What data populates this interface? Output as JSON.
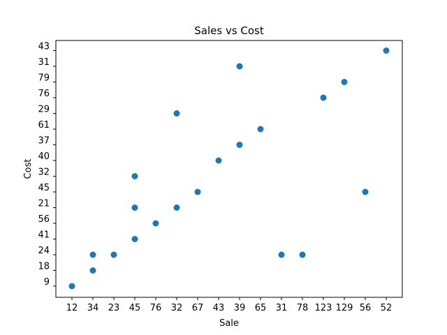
{
  "chart_data": {
    "type": "scatter",
    "title": "Sales vs Cost",
    "xlabel": "Sale",
    "ylabel": "Cost",
    "x_categories": [
      "12",
      "34",
      "23",
      "45",
      "76",
      "32",
      "67",
      "43",
      "39",
      "65",
      "31",
      "78",
      "123",
      "129",
      "56",
      "52"
    ],
    "y_categories": [
      "9",
      "18",
      "24",
      "41",
      "56",
      "21",
      "45",
      "32",
      "40",
      "37",
      "61",
      "29",
      "76",
      "79",
      "31",
      "43"
    ],
    "points": [
      {
        "x": "12",
        "y": "9"
      },
      {
        "x": "34",
        "y": "18"
      },
      {
        "x": "34",
        "y": "24"
      },
      {
        "x": "23",
        "y": "24"
      },
      {
        "x": "45",
        "y": "41"
      },
      {
        "x": "76",
        "y": "56"
      },
      {
        "x": "45",
        "y": "21"
      },
      {
        "x": "32",
        "y": "21"
      },
      {
        "x": "67",
        "y": "45"
      },
      {
        "x": "45",
        "y": "32"
      },
      {
        "x": "43",
        "y": "40"
      },
      {
        "x": "39",
        "y": "37"
      },
      {
        "x": "65",
        "y": "61"
      },
      {
        "x": "32",
        "y": "29"
      },
      {
        "x": "123",
        "y": "76"
      },
      {
        "x": "129",
        "y": "79"
      },
      {
        "x": "39",
        "y": "31"
      },
      {
        "x": "52",
        "y": "43"
      },
      {
        "x": "31",
        "y": "24"
      },
      {
        "x": "78",
        "y": "24"
      },
      {
        "x": "56",
        "y": "45"
      }
    ],
    "marker_color": "#1f77b4",
    "grid": false
  }
}
